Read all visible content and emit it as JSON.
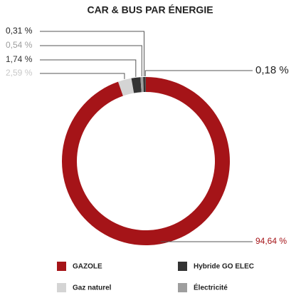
{
  "chart_data": {
    "type": "donut",
    "title": "CAR & BUS PAR ÉNERGIE",
    "categories": [
      "GAZOLE",
      "Gaz naturel",
      "Hybride GO ELEC",
      "Électricité",
      null,
      null
    ],
    "values": [
      94.64,
      2.59,
      1.74,
      0.54,
      0.31,
      0.18
    ],
    "value_labels": [
      "94,64 %",
      "2,59 %",
      "1,74 %",
      "0,54 %",
      "0,31 %",
      "0,18 %"
    ],
    "colors": [
      "#a51418",
      "#d4d4d4",
      "#333333",
      "#9e9e9e",
      "#222222",
      "#555555"
    ]
  }
}
